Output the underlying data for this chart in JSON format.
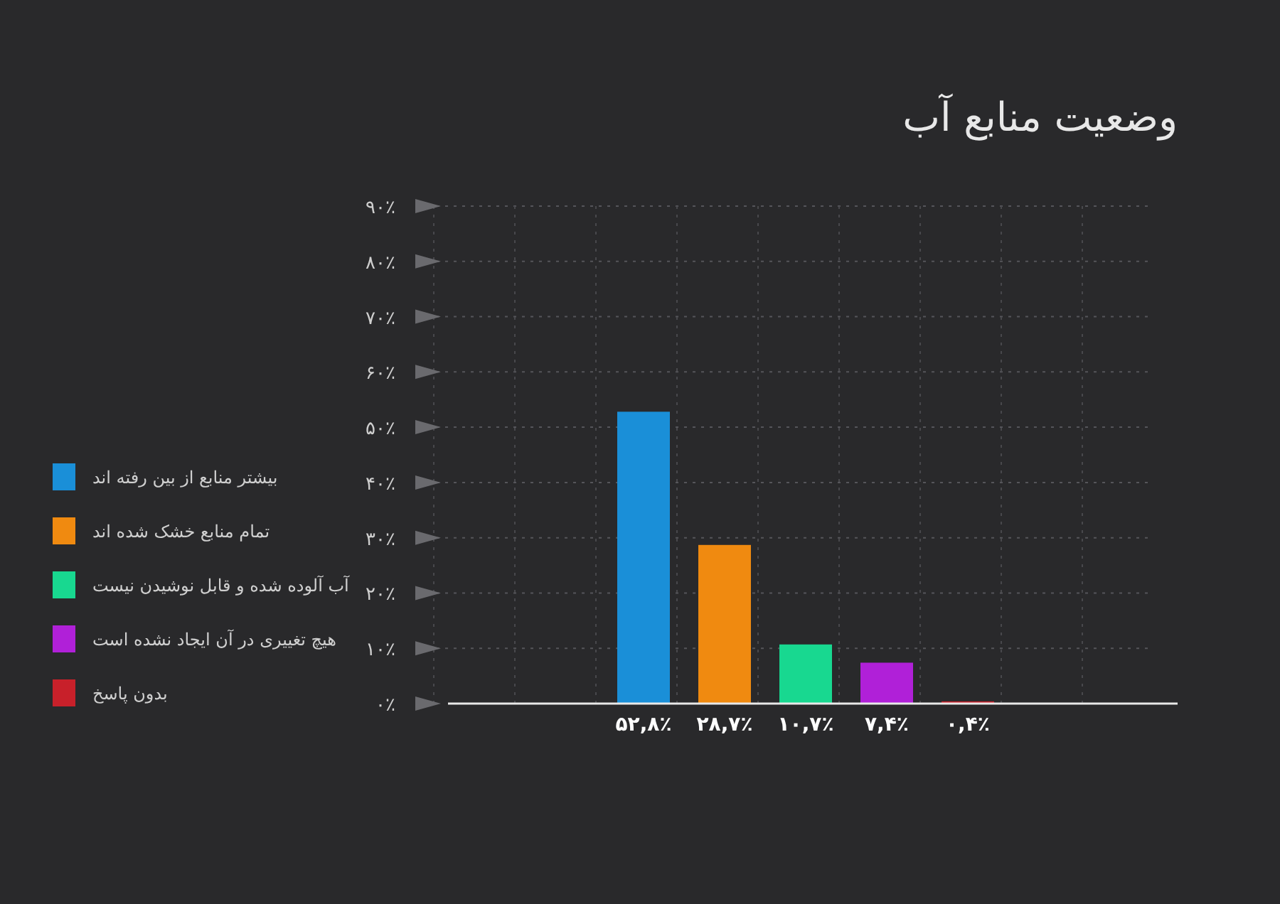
{
  "chart_data": {
    "type": "bar",
    "title": "وضعیت منابع آب",
    "categories": [
      null
    ],
    "series": [
      {
        "name": "بیشتر منابع از بین رفته اند",
        "color": "#1a8fd8",
        "values": [
          52.8
        ],
        "value_labels": [
          "۵۲,۸٪"
        ]
      },
      {
        "name": "تمام منابع خشک شده اند",
        "color": "#f08a10",
        "values": [
          28.7
        ],
        "value_labels": [
          "۲۸,۷٪"
        ]
      },
      {
        "name": "آب آلوده شده و قابل نوشیدن نیست",
        "color": "#18d890",
        "values": [
          10.7
        ],
        "value_labels": [
          "۱۰,۷٪"
        ]
      },
      {
        "name": "هیچ تغییری در آن ایجاد نشده است",
        "color": "#b020d8",
        "values": [
          7.4
        ],
        "value_labels": [
          "۷,۴٪"
        ]
      },
      {
        "name": "بدون پاسخ",
        "color": "#c8202a",
        "values": [
          0.4
        ],
        "value_labels": [
          "۰,۴٪"
        ]
      }
    ],
    "ylim": [
      0,
      90
    ],
    "yticks": [
      {
        "value": 0,
        "label": "۰٪"
      },
      {
        "value": 10,
        "label": "۱۰٪"
      },
      {
        "value": 20,
        "label": "۲۰٪"
      },
      {
        "value": 30,
        "label": "۳۰٪"
      },
      {
        "value": 40,
        "label": "۴۰٪"
      },
      {
        "value": 50,
        "label": "۵۰٪"
      },
      {
        "value": 60,
        "label": "۶۰٪"
      },
      {
        "value": 70,
        "label": "۷۰٪"
      },
      {
        "value": 80,
        "label": "۸۰٪"
      },
      {
        "value": 90,
        "label": "۹۰٪"
      }
    ],
    "grid": true,
    "legend": "left"
  }
}
